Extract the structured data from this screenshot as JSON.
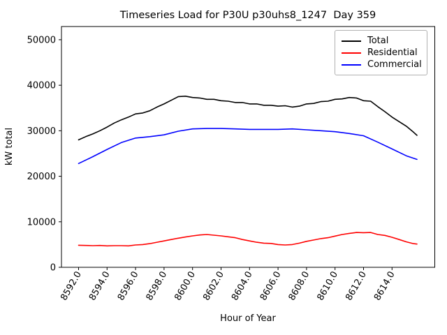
{
  "chart_data": {
    "type": "line",
    "title": "Timeseries Load for P30U p30uhs8_1247  Day 359",
    "xlabel": "Hour of Year",
    "ylabel": "kW total",
    "xlim": [
      8590.8,
      8617.0
    ],
    "ylim": [
      0,
      52900
    ],
    "grid": false,
    "legend_position": "upper right",
    "xtick_values": [
      8592,
      8594,
      8596,
      8598,
      8600,
      8602,
      8604,
      8606,
      8608,
      8610,
      8612,
      8614
    ],
    "xtick_labels": [
      "8592.0",
      "8594.0",
      "8596.0",
      "8598.0",
      "8600.0",
      "8602.0",
      "8604.0",
      "8606.0",
      "8608.0",
      "8610.0",
      "8612.0",
      "8614.0"
    ],
    "ytick_values": [
      0,
      10000,
      20000,
      30000,
      40000,
      50000
    ],
    "ytick_labels": [
      "0",
      "10000",
      "20000",
      "30000",
      "40000",
      "50000"
    ],
    "series": [
      {
        "name": "Total",
        "color": "#000000",
        "x": [
          8592,
          8592.5,
          8593,
          8593.5,
          8594,
          8594.5,
          8595,
          8595.5,
          8596,
          8596.5,
          8597,
          8597.5,
          8598,
          8598.5,
          8599,
          8599.5,
          8600,
          8600.5,
          8601,
          8601.5,
          8602,
          8602.5,
          8603,
          8603.5,
          8604,
          8604.5,
          8605,
          8605.5,
          8606,
          8606.5,
          8607,
          8607.5,
          8608,
          8608.5,
          8609,
          8609.5,
          8610,
          8610.5,
          8611,
          8611.5,
          8612,
          8612.5,
          8613,
          8613.5,
          8614,
          8614.5,
          8615,
          8615.5,
          8615.75
        ],
        "values": [
          28000,
          28700,
          29300,
          30000,
          30800,
          31700,
          32400,
          33000,
          33700,
          33900,
          34400,
          35200,
          35900,
          36700,
          37500,
          37600,
          37300,
          37200,
          36900,
          36900,
          36600,
          36500,
          36200,
          36200,
          35900,
          35900,
          35600,
          35600,
          35400,
          35500,
          35200,
          35400,
          35900,
          36000,
          36400,
          36500,
          36900,
          37000,
          37300,
          37200,
          36600,
          36500,
          35300,
          34200,
          33000,
          32000,
          31000,
          29700,
          29000
        ]
      },
      {
        "name": "Residential",
        "color": "#ff0000",
        "x": [
          8592,
          8592.5,
          8593,
          8593.5,
          8594,
          8594.5,
          8595,
          8595.5,
          8596,
          8596.5,
          8597,
          8597.5,
          8598,
          8598.5,
          8599,
          8599.5,
          8600,
          8600.5,
          8601,
          8601.5,
          8602,
          8602.5,
          8603,
          8603.5,
          8604,
          8604.5,
          8605,
          8605.5,
          8606,
          8606.5,
          8607,
          8607.5,
          8608,
          8608.5,
          8609,
          8609.5,
          8610,
          8610.5,
          8611,
          8611.5,
          8612,
          8612.5,
          8613,
          8613.5,
          8614,
          8614.5,
          8615,
          8615.5,
          8615.75
        ],
        "values": [
          4850,
          4800,
          4750,
          4800,
          4700,
          4750,
          4750,
          4700,
          4900,
          5000,
          5200,
          5500,
          5800,
          6100,
          6400,
          6650,
          6900,
          7100,
          7200,
          7050,
          6900,
          6700,
          6500,
          6100,
          5800,
          5500,
          5300,
          5250,
          5000,
          4900,
          5000,
          5300,
          5700,
          6000,
          6300,
          6500,
          6850,
          7200,
          7450,
          7650,
          7600,
          7650,
          7200,
          7000,
          6600,
          6100,
          5600,
          5200,
          5100
        ]
      },
      {
        "name": "Commercial",
        "color": "#0000ff",
        "x": [
          8592,
          8593,
          8594,
          8595,
          8596,
          8597,
          8598,
          8599,
          8600,
          8601,
          8602,
          8603,
          8604,
          8605,
          8606,
          8607,
          8608,
          8609,
          8610,
          8611,
          8612,
          8613,
          8614,
          8615,
          8615.75
        ],
        "values": [
          22800,
          24300,
          25900,
          27400,
          28400,
          28700,
          29100,
          29900,
          30400,
          30500,
          30500,
          30400,
          30300,
          30300,
          30300,
          30400,
          30200,
          30000,
          29800,
          29400,
          28900,
          27500,
          26000,
          24500,
          23700
        ]
      }
    ]
  }
}
